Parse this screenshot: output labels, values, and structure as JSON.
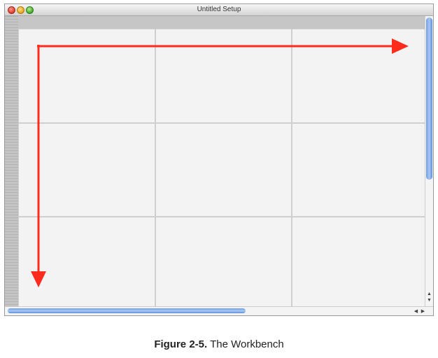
{
  "window": {
    "title": "Untitled Setup"
  },
  "grid": {
    "rows": 3,
    "columns": 3
  },
  "scrollbars": {
    "up_glyph": "▲",
    "down_glyph": "▼",
    "left_glyph": "◀",
    "right_glyph": "▶"
  },
  "caption": {
    "figure": "Figure 2-5.",
    "text": "The Workbench"
  },
  "colors": {
    "annotation_arrow": "#ff2b1c",
    "scroll_thumb": "#6b9ce6"
  }
}
